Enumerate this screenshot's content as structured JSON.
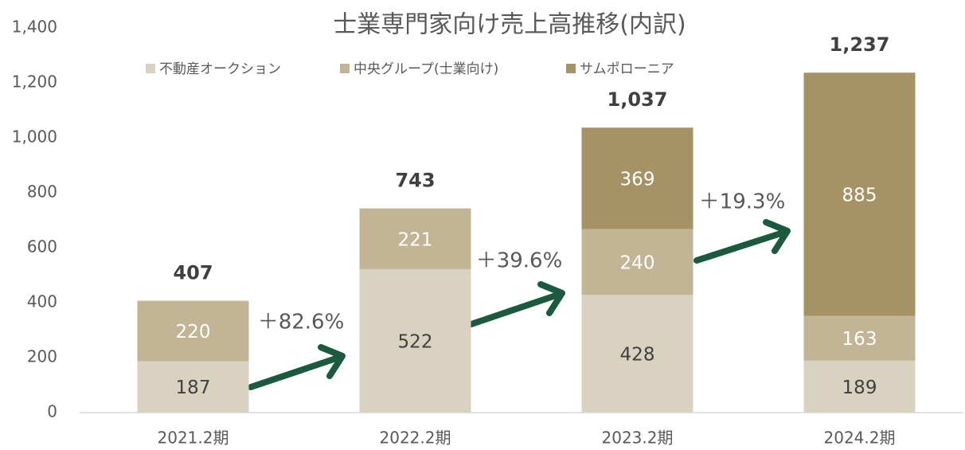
{
  "chart_data": {
    "type": "stacked_bar",
    "title": "士業専門家向け売上高推移(内訳)",
    "categories": [
      "2021.2期",
      "2022.2期",
      "2023.2期",
      "2024.2期"
    ],
    "series": [
      {
        "name": "不動産オークション",
        "color": "#d9d2c0",
        "values": [
          187,
          522,
          428,
          189
        ]
      },
      {
        "name": "中央グループ(士業向け)",
        "color": "#c2b596",
        "values": [
          220,
          221,
          240,
          163
        ]
      },
      {
        "name": "サムポローニア",
        "color": "#a69365",
        "values": [
          null,
          null,
          369,
          885
        ]
      }
    ],
    "totals": [
      407,
      743,
      1037,
      1237
    ],
    "total_labels": [
      "407",
      "743",
      "1,037",
      "1,237"
    ],
    "annotations": [
      "＋82.6%",
      "＋39.6%",
      "＋19.3%"
    ],
    "ylim": [
      0,
      1400
    ],
    "yticks": [
      0,
      200,
      400,
      600,
      800,
      {
        "value": 1000,
        "label": "1,000"
      },
      {
        "value": 1200,
        "label": "1,200"
      },
      {
        "value": 1400,
        "label": "1,400"
      }
    ],
    "legend": "top"
  }
}
